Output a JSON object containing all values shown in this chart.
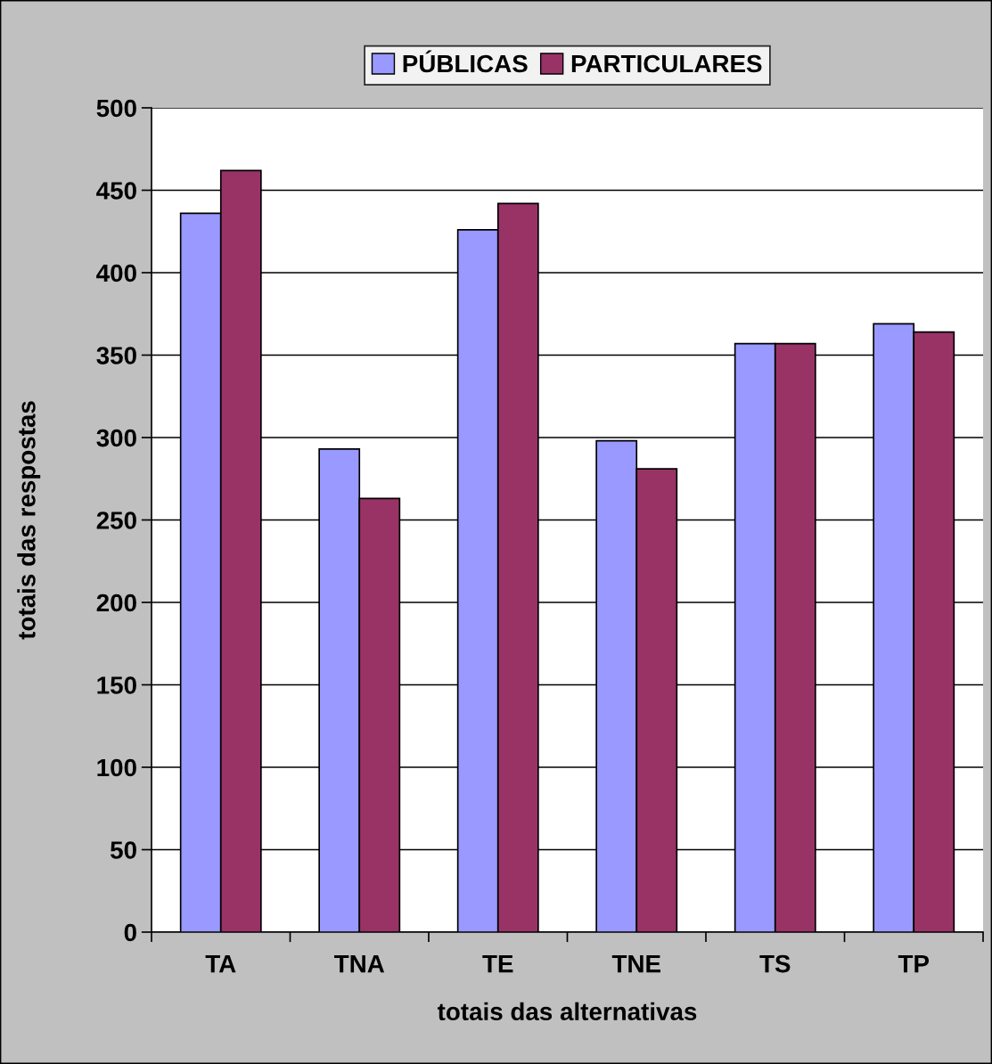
{
  "chart_data": {
    "type": "bar",
    "xlabel": "totais das alternativas",
    "ylabel": "totais das respostas",
    "categories": [
      "TA",
      "TNA",
      "TE",
      "TNE",
      "TS",
      "TP"
    ],
    "series": [
      {
        "name": "PÚBLICAS",
        "color": "#9999ff",
        "values": [
          436,
          293,
          426,
          298,
          357,
          369
        ]
      },
      {
        "name": "PARTICULARES",
        "color": "#993366",
        "values": [
          462,
          263,
          442,
          281,
          357,
          364
        ]
      }
    ],
    "ylim": [
      0,
      500
    ],
    "yticks": [
      0,
      50,
      100,
      150,
      200,
      250,
      300,
      350,
      400,
      450,
      500
    ],
    "grid": "y",
    "legend": "top"
  }
}
